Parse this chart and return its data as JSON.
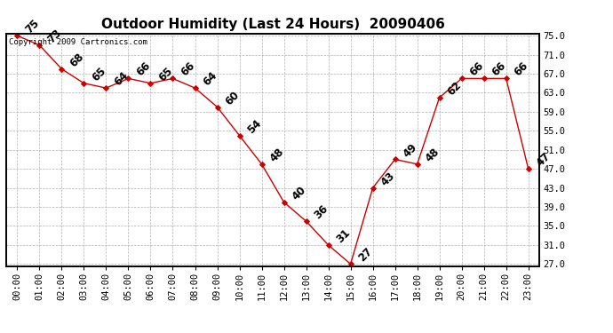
{
  "title": "Outdoor Humidity (Last 24 Hours)  20090406",
  "copyright": "Copyright 2009 Cartronics.com",
  "x_labels": [
    "00:00",
    "01:00",
    "02:00",
    "03:00",
    "04:00",
    "05:00",
    "06:00",
    "07:00",
    "08:00",
    "09:00",
    "10:00",
    "11:00",
    "12:00",
    "13:00",
    "14:00",
    "15:00",
    "16:00",
    "17:00",
    "18:00",
    "19:00",
    "20:00",
    "21:00",
    "22:00",
    "23:00"
  ],
  "x_values": [
    0,
    1,
    2,
    3,
    4,
    5,
    6,
    7,
    8,
    9,
    10,
    11,
    12,
    13,
    14,
    15,
    16,
    17,
    18,
    19,
    20,
    21,
    22,
    23
  ],
  "y_values": [
    75,
    73,
    68,
    65,
    64,
    66,
    65,
    66,
    64,
    60,
    54,
    48,
    40,
    36,
    31,
    27,
    43,
    49,
    48,
    62,
    66,
    66,
    66,
    47
  ],
  "ylim_min": 27,
  "ylim_max": 75,
  "yticks": [
    27,
    31,
    35,
    39,
    43,
    47,
    51,
    55,
    59,
    63,
    67,
    71,
    75
  ],
  "line_color": "#cc0000",
  "marker": "D",
  "background_color": "#ffffff",
  "grid_color": "#b0b0b0",
  "title_fontsize": 11,
  "tick_fontsize": 7.5,
  "annot_fontsize": 8.5,
  "copyright_fontsize": 6.5
}
